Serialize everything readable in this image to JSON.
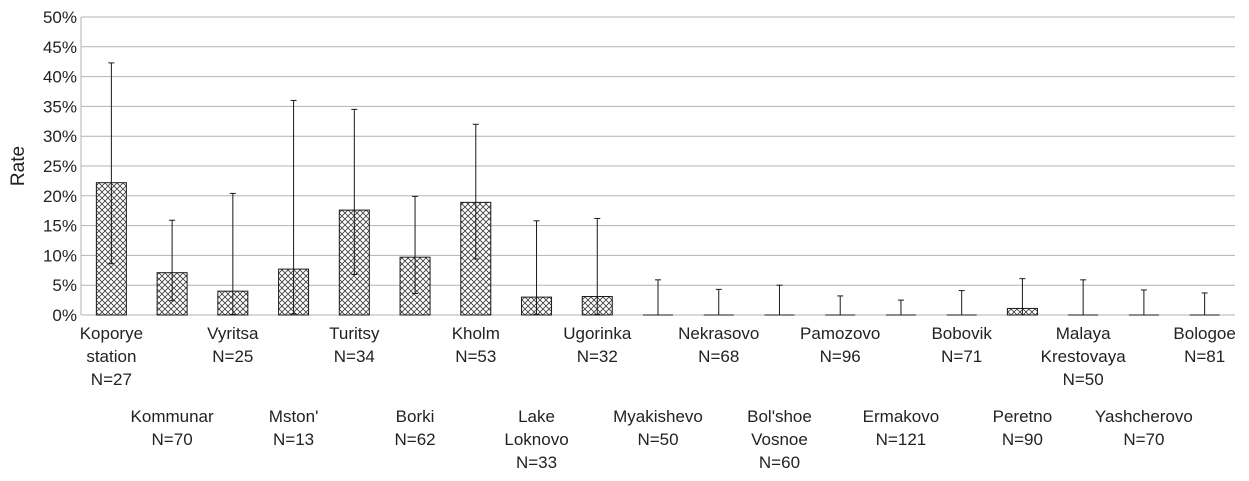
{
  "chart_data": {
    "type": "bar",
    "ylabel": "Rate",
    "xlabel": "",
    "ylim": [
      0,
      50
    ],
    "y_unit": "%",
    "grid": true,
    "bar_pattern": "cross-hatch",
    "y_ticks": [
      "0%",
      "5%",
      "10%",
      "15%",
      "20%",
      "25%",
      "30%",
      "35%",
      "40%",
      "45%",
      "50%"
    ],
    "categories": [
      "Koporye station",
      "Kommunar",
      "Vyritsa",
      "Mston'",
      "Turitsy",
      "Borki",
      "Kholm",
      "Lake Loknovo",
      "Ugorinka",
      "Myakishevo",
      "Nekrasovo",
      "Bol'shoe Vosnoe",
      "Pamozovo",
      "Ermakovo",
      "Bobovik",
      "Peretno",
      "Malaya Krestovaya",
      "Yashcherovo",
      "Bologoe"
    ],
    "labels": [
      {
        "lines": [
          "Koporye",
          "station",
          "N=27"
        ],
        "row": 0
      },
      {
        "lines": [
          "Kommunar",
          "N=70"
        ],
        "row": 1
      },
      {
        "lines": [
          "Vyritsa",
          "N=25"
        ],
        "row": 0
      },
      {
        "lines": [
          "Mston'",
          "N=13"
        ],
        "row": 1
      },
      {
        "lines": [
          "Turitsy",
          "N=34"
        ],
        "row": 0
      },
      {
        "lines": [
          "Borki",
          "N=62"
        ],
        "row": 1
      },
      {
        "lines": [
          "Kholm",
          "N=53"
        ],
        "row": 0
      },
      {
        "lines": [
          "Lake",
          "Loknovo",
          "N=33"
        ],
        "row": 1
      },
      {
        "lines": [
          "Ugorinka",
          "N=32"
        ],
        "row": 0
      },
      {
        "lines": [
          "Myakishevo",
          "N=50"
        ],
        "row": 1
      },
      {
        "lines": [
          "Nekrasovo",
          "N=68"
        ],
        "row": 0
      },
      {
        "lines": [
          "Bol'shoe",
          "Vosnoe",
          "N=60"
        ],
        "row": 1
      },
      {
        "lines": [
          "Pamozovo",
          "N=96"
        ],
        "row": 0
      },
      {
        "lines": [
          "Ermakovo",
          "N=121"
        ],
        "row": 1
      },
      {
        "lines": [
          "Bobovik",
          "N=71"
        ],
        "row": 0
      },
      {
        "lines": [
          "Peretno",
          "N=90"
        ],
        "row": 1
      },
      {
        "lines": [
          "Malaya",
          "Krestovaya",
          "N=50"
        ],
        "row": 0
      },
      {
        "lines": [
          "Yashcherovo",
          "N=70"
        ],
        "row": 1
      },
      {
        "lines": [
          "Bologoe",
          "N=81"
        ],
        "row": 0
      }
    ],
    "n": [
      27,
      70,
      25,
      13,
      34,
      62,
      53,
      33,
      32,
      50,
      68,
      60,
      96,
      121,
      71,
      90,
      50,
      70,
      81
    ],
    "values": [
      22.2,
      7.1,
      4.0,
      7.7,
      17.6,
      9.7,
      18.9,
      3.0,
      3.1,
      0,
      0,
      0,
      0,
      0,
      0,
      1.1,
      0,
      0,
      0
    ],
    "error_low": [
      8.6,
      2.4,
      0.1,
      0.2,
      6.8,
      3.6,
      9.4,
      0.1,
      0.1,
      0,
      0,
      0,
      0,
      0,
      0,
      0.03,
      0,
      0,
      0
    ],
    "error_high": [
      42.3,
      15.9,
      20.4,
      36.0,
      34.5,
      19.9,
      32.0,
      15.8,
      16.2,
      5.9,
      4.3,
      5.0,
      3.2,
      2.5,
      4.1,
      6.1,
      5.9,
      4.2,
      3.7
    ]
  }
}
